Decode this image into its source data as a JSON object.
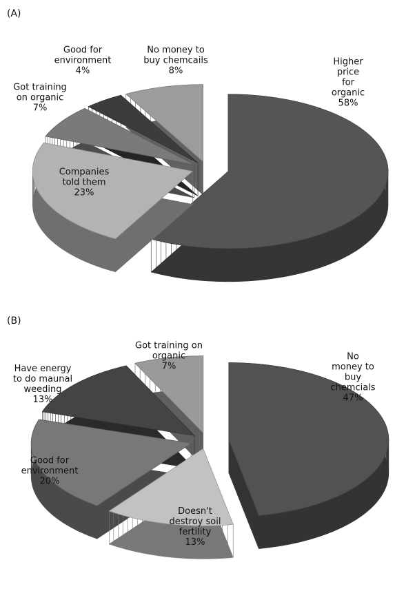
{
  "chart_data": [
    {
      "type": "pie",
      "title": "(A)",
      "categories": [
        "Higher price\nfor organic",
        "Companies\ntold them",
        "Got training\non organic",
        "Good for\nenvironment",
        "No money to\nbuy chemcails"
      ],
      "values": [
        58,
        23,
        7,
        4,
        8
      ],
      "value_labels": [
        "58%",
        "23%",
        "7%",
        "4%",
        "8%"
      ],
      "colors": [
        "#555555",
        "#b3b3b3",
        "#7a7a7a",
        "#3c3c3c",
        "#9c9c9c"
      ]
    },
    {
      "type": "pie",
      "title": "(B)",
      "categories": [
        "No money to\nbuy chemcials",
        "Doesn't\ndestroy soil\nfertility",
        "Good for\nenvironment",
        "Have energy\nto do maunal\nweeding",
        "Got training on\norganic"
      ],
      "values": [
        47,
        13,
        20,
        13,
        7
      ],
      "value_labels": [
        "47%",
        "13%",
        "20%",
        "13%",
        "7%"
      ],
      "colors": [
        "#525252",
        "#c2c2c2",
        "#787878",
        "#444444",
        "#9a9a9a"
      ]
    }
  ]
}
